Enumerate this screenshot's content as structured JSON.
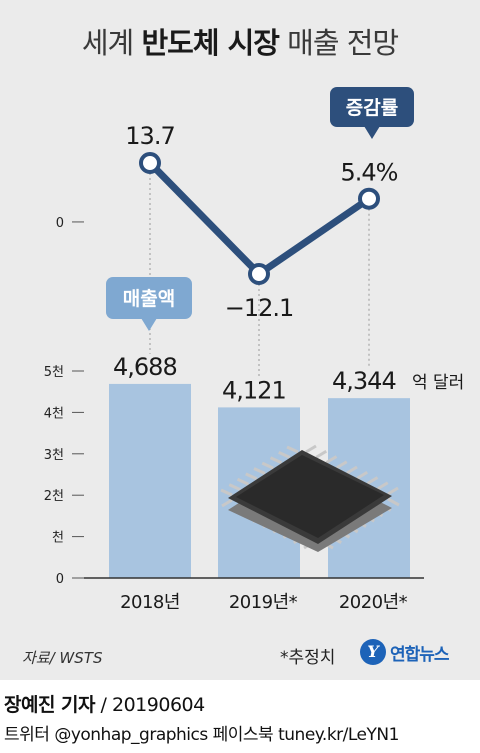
{
  "title": {
    "normal_1": "세계 ",
    "bold": "반도체 시장",
    "normal_2": " 매출 전망"
  },
  "source": "자료/ WSTS",
  "estimate_note": "*추정치",
  "logo": {
    "mark": "Y",
    "text": "연합뉴스"
  },
  "credit": {
    "name": "장예진 기자",
    "separator": " / ",
    "date": "20190604"
  },
  "social": "트위터 @yonhap_graphics  페이스북 tuney.kr/LeYN1",
  "colors": {
    "bar": "#a8c4e0",
    "line": "#2d4f7c",
    "badge_growth": "#2d4f7c",
    "badge_sales": "#7fa8d1",
    "panel": "#ebebeb"
  },
  "chart_data": [
    {
      "type": "line",
      "badge": "증감률",
      "categories": [
        "2018년",
        "2019년*",
        "2020년*"
      ],
      "values": [
        13.7,
        -12.1,
        5.4
      ],
      "value_labels": [
        "13.7",
        "−12.1",
        "5.4%"
      ],
      "y_ticks": [
        {
          "value": 0,
          "label": "0"
        }
      ],
      "ylim": [
        -12.1,
        13.7
      ]
    },
    {
      "type": "bar",
      "badge": "매출액",
      "categories": [
        "2018년",
        "2019년*",
        "2020년*"
      ],
      "values": [
        4688,
        4121,
        4344
      ],
      "value_labels": [
        "4,688",
        "4,121",
        "4,344"
      ],
      "unit": "억 달러",
      "y_ticks": [
        {
          "value": 0,
          "label": "0"
        },
        {
          "value": 1000,
          "label": "천"
        },
        {
          "value": 2000,
          "label": "2천"
        },
        {
          "value": 3000,
          "label": "3천"
        },
        {
          "value": 4000,
          "label": "4천"
        },
        {
          "value": 5000,
          "label": "5천"
        }
      ],
      "ylim": [
        0,
        5000
      ]
    }
  ]
}
